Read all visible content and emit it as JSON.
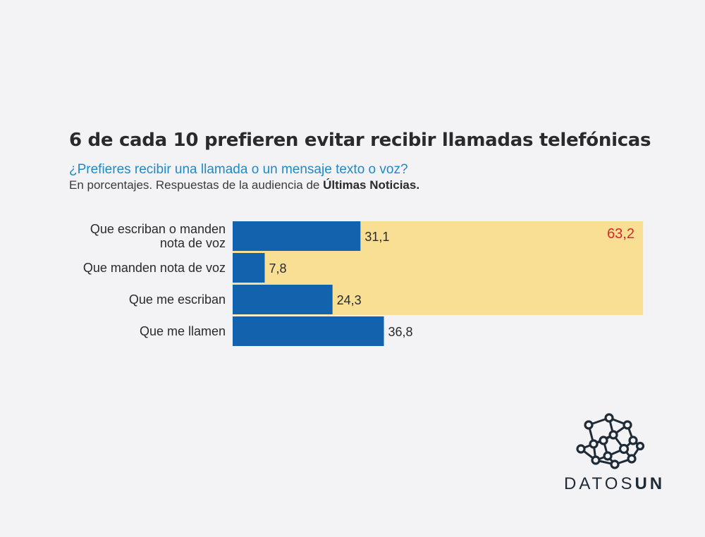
{
  "header": {
    "title": "6 de cada 10 prefieren evitar recibir llamadas telefónicas",
    "subtitle": "¿Prefieres recibir una llamada o un mensaje texto o voz?",
    "note_prefix": "En porcentajes. Respuestas de la audiencia de ",
    "note_source": "Últimas Noticias."
  },
  "colors": {
    "bar": "#1262ad",
    "highlight": "#f9df94",
    "highlight_label": "#d7282c",
    "text": "#2a2a2a"
  },
  "chart_data": {
    "type": "bar",
    "orientation": "horizontal",
    "title": "6 de cada 10 prefieren evitar recibir llamadas telefónicas",
    "categories": [
      [
        "Que escriban o manden",
        "nota de voz"
      ],
      [
        "Que manden nota de voz"
      ],
      [
        "Que me escriban"
      ],
      [
        "Que me llamen"
      ]
    ],
    "values": [
      31.1,
      7.8,
      24.3,
      36.8
    ],
    "value_labels": [
      "31,1",
      "7,8",
      "24,3",
      "36,8"
    ],
    "highlight": {
      "label": "63,2",
      "value": 63.2,
      "covers_categories": [
        0,
        1,
        2
      ]
    },
    "xlim": [
      0,
      100
    ]
  },
  "brand": {
    "name_light": "DATOS",
    "name_bold": "UN",
    "icon": "network-nodes-icon"
  }
}
